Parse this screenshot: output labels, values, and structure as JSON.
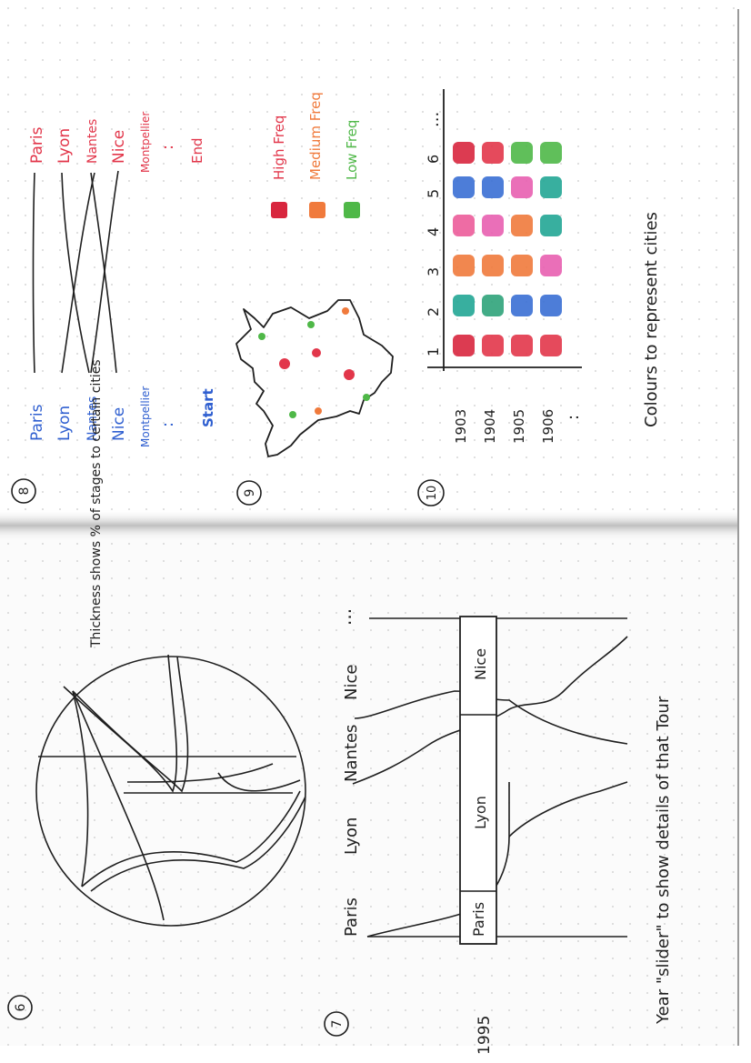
{
  "sketch8": {
    "number": "8",
    "left_cities": [
      "Paris",
      "Lyon",
      "Nantes",
      "Nice",
      "Montpellier",
      ":",
      "Start"
    ],
    "right_cities": [
      "Paris",
      "Lyon",
      "Nantes",
      "Nice",
      "Montpellier",
      ":",
      "End"
    ]
  },
  "sketch9": {
    "number": "9",
    "legend": [
      "High Freq",
      "Medium Freq",
      "Low Freq"
    ]
  },
  "sketch10": {
    "number": "10",
    "stage_labels": [
      "1",
      "2",
      "3",
      "4",
      "5",
      "6",
      "..."
    ],
    "years": [
      "1903",
      "1904",
      "1905",
      "1906",
      ":"
    ],
    "caption": "Colours to represent cities"
  },
  "sketch6": {
    "number": "6",
    "note": "Thickness shows % of stages to certain cities"
  },
  "sketch7": {
    "number": "7",
    "year": "1995",
    "columns": [
      "Paris",
      "Lyon",
      "Nantes",
      "Nice",
      "..."
    ],
    "slider_cells": [
      "Paris",
      "Lyon",
      "Nice"
    ],
    "caption": "Year \"slider\" to show details of that Tour"
  },
  "colors": {
    "ink_blue": "#2f5fd0",
    "ink_red": "#e2364a",
    "ink_orange": "#f07a3c",
    "ink_green": "#4fb848",
    "ink_pink": "#e85fb0",
    "ink_teal": "#22a695",
    "ink_black": "#1f1f1f"
  },
  "grid_colors": [
    [
      "#d8263e",
      "#22a695",
      "#f07a3c",
      "#ec5c9a",
      "#3a6fd4",
      "#d8263e"
    ],
    [
      "#e2364a",
      "#2fa37a",
      "#f07a3c",
      "#e85fb0",
      "#3a6fd4",
      "#e2364a"
    ],
    [
      "#e2364a",
      "#3a6fd4",
      "#f07a3c",
      "#f07a3c",
      "#e85fb0",
      "#4fb848"
    ],
    [
      "#e2364a",
      "#3a6fd4",
      "#e85fb0",
      "#22a695",
      "#22a695",
      "#4fb848"
    ]
  ],
  "legend_swatches": [
    "#d8263e",
    "#f07a3c",
    "#4fb848"
  ]
}
